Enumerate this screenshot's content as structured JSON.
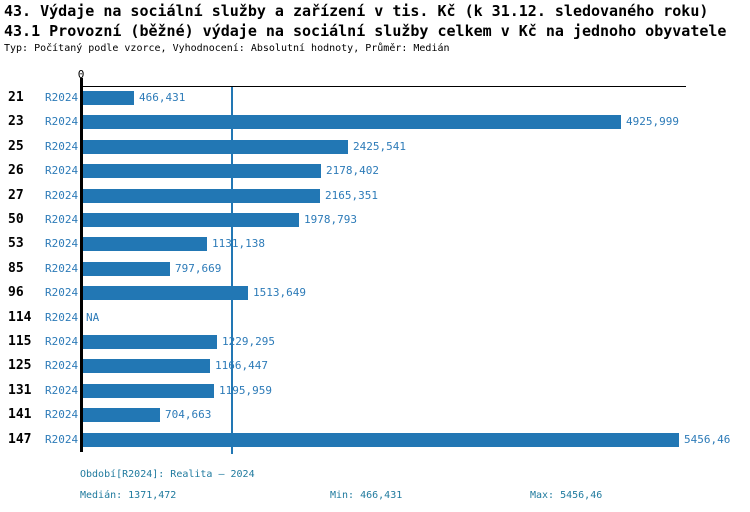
{
  "title_line1": "43. Výdaje na sociální služby a zařízení v tis. Kč (k 31.12. sledovaného roku)",
  "title_line2": "43.1 Provozní (běžné) výdaje na sociální služby celkem v Kč na jednoho obyvatele",
  "subtitle": "Typ: Počítaný podle vzorce, Vyhodnocení: Absolutní hodnoty, Průměr: Medián",
  "colors": {
    "background": "#ffffff",
    "title_text": "#000000",
    "axis": "#000000",
    "bar": "#2277b4",
    "median_line": "#2277b4",
    "label_text": "#2d7bb8",
    "footer_text": "#1f7a9e"
  },
  "chart_data": {
    "type": "bar",
    "orientation": "horizontal",
    "axis_origin_label": "0",
    "series_label": "R2024",
    "categories": [
      "21",
      "23",
      "25",
      "26",
      "27",
      "50",
      "53",
      "85",
      "96",
      "114",
      "115",
      "125",
      "131",
      "141",
      "147"
    ],
    "values": [
      466.431,
      4925.999,
      2425.541,
      2178.402,
      2165.351,
      1978.793,
      1131.138,
      797.669,
      1513.649,
      null,
      1229.295,
      1166.447,
      1195.959,
      704.663,
      5456.46
    ],
    "value_labels": [
      "466,431",
      "4925,999",
      "2425,541",
      "2178,402",
      "2165,351",
      "1978,793",
      "1131,138",
      "797,669",
      "1513,649",
      "NA",
      "1229,295",
      "1166,447",
      "1195,959",
      "704,663",
      "5456,46"
    ],
    "median_value": 1371.472,
    "min_value": 466.431,
    "max_value": 5456.46,
    "xlim": [
      0,
      5456.46
    ],
    "grid": false,
    "legend": false,
    "median_line": true
  },
  "footer": {
    "period": "Období[R2024]: Realita – 2024",
    "median": "Medián: 1371,472",
    "min": "Min: 466,431",
    "max": "Max: 5456,46"
  }
}
